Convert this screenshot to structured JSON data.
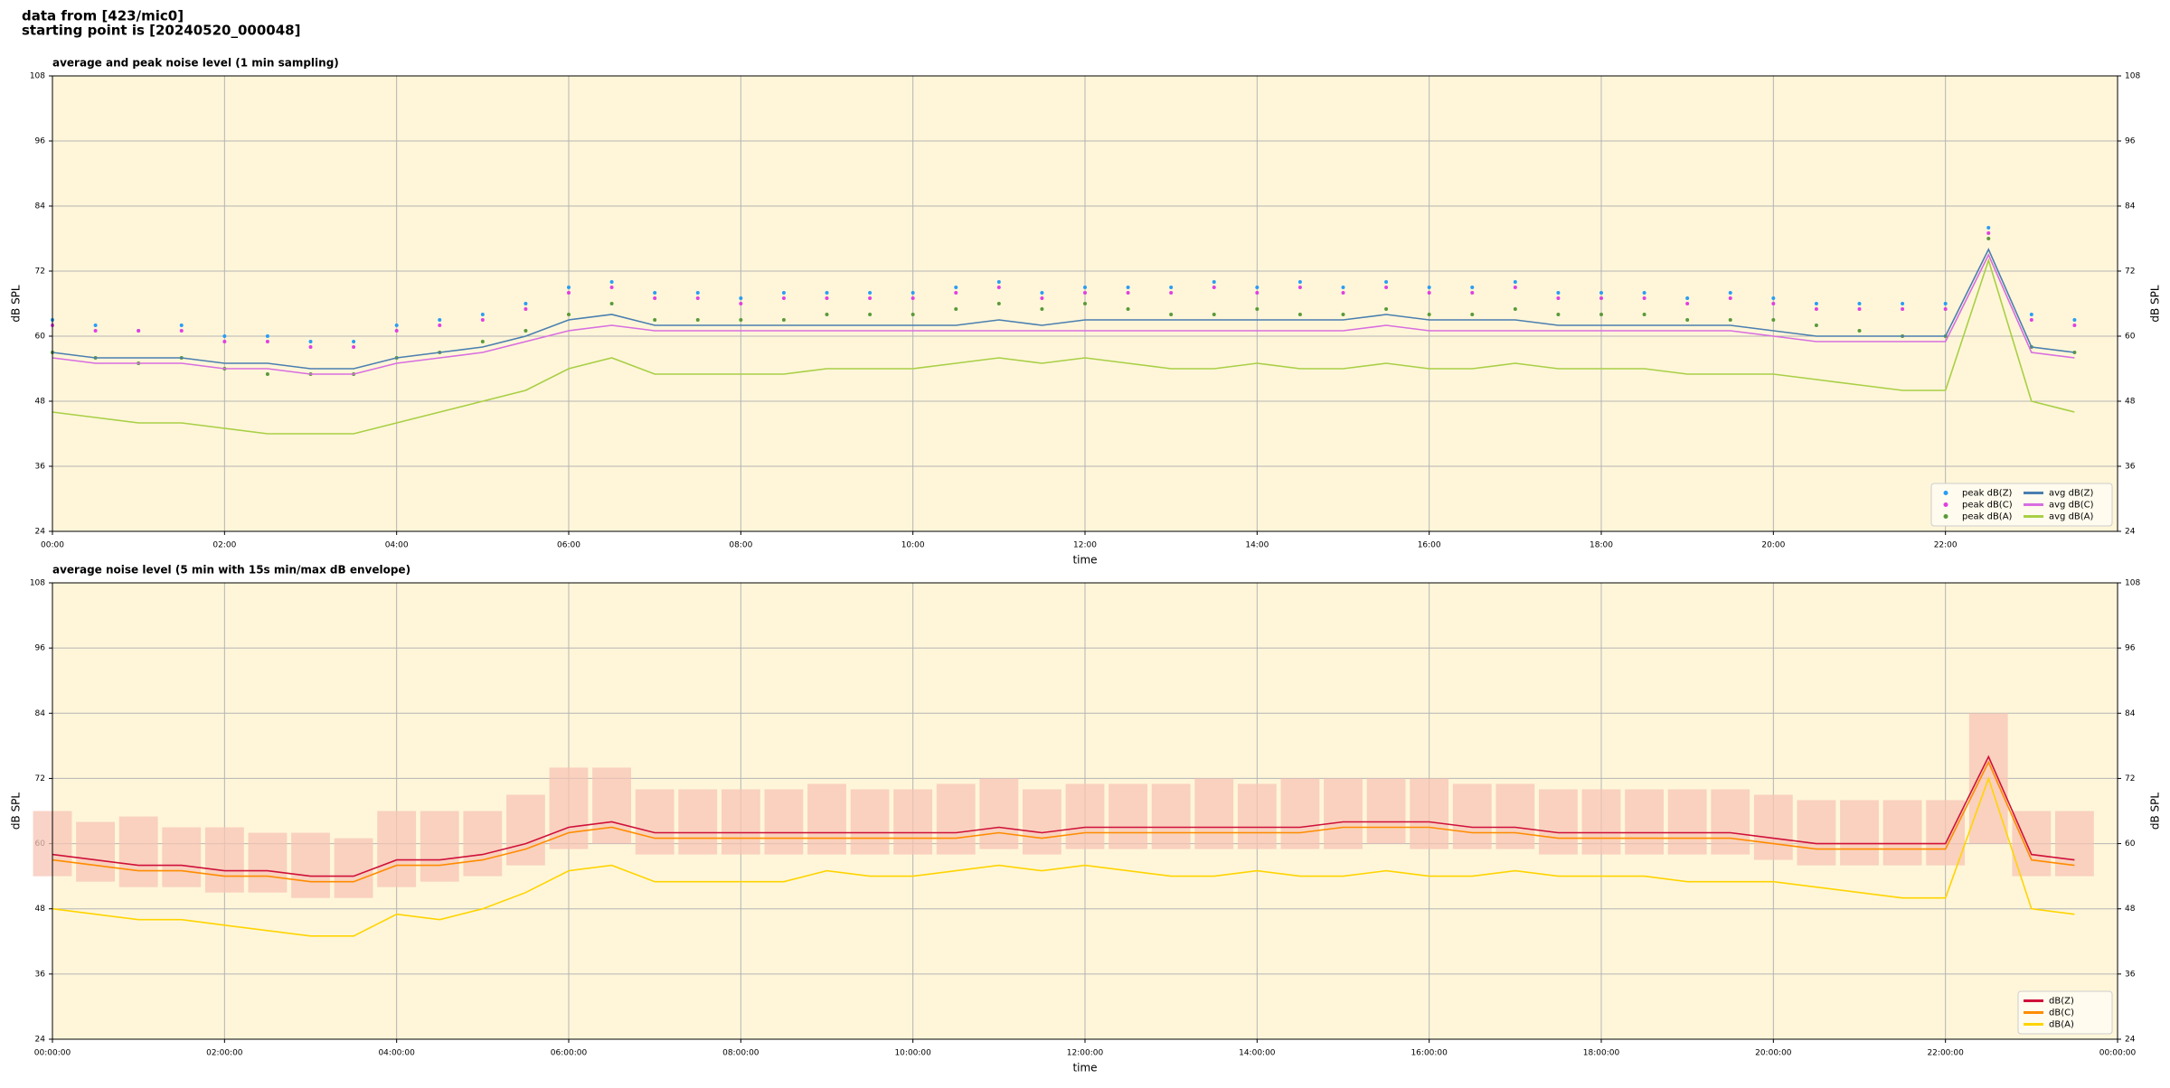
{
  "header": [
    "data from [423/mic0]",
    "starting point is [20240520_000048]"
  ],
  "chart_data": [
    {
      "type": "line",
      "title": "average and peak noise level (1 min sampling)",
      "xlabel": "time",
      "ylabel": "dB SPL",
      "xlim": [
        0,
        24
      ],
      "ylim": [
        24,
        108
      ],
      "yticks": [
        24,
        36,
        48,
        60,
        72,
        84,
        96,
        108
      ],
      "xticks": [
        {
          "value": 0,
          "label": "00:00"
        },
        {
          "value": 2,
          "label": "02:00"
        },
        {
          "value": 4,
          "label": "04:00"
        },
        {
          "value": 6,
          "label": "06:00"
        },
        {
          "value": 8,
          "label": "08:00"
        },
        {
          "value": 10,
          "label": "10:00"
        },
        {
          "value": 12,
          "label": "12:00"
        },
        {
          "value": 14,
          "label": "14:00"
        },
        {
          "value": 16,
          "label": "16:00"
        },
        {
          "value": 18,
          "label": "18:00"
        },
        {
          "value": 20,
          "label": "20:00"
        },
        {
          "value": 22,
          "label": "22:00"
        }
      ],
      "grid": true,
      "legend": "lower right",
      "legend_columns": 2,
      "background": "#fff6d9",
      "x": [
        0,
        0.5,
        1,
        1.5,
        2,
        2.5,
        3,
        3.5,
        4,
        4.5,
        5,
        5.5,
        6,
        6.5,
        7,
        7.5,
        8,
        8.5,
        9,
        9.5,
        10,
        10.5,
        11,
        11.5,
        12,
        12.5,
        13,
        13.5,
        14,
        14.5,
        15,
        15.5,
        16,
        16.5,
        17,
        17.5,
        18,
        18.5,
        19,
        19.5,
        20,
        20.5,
        21,
        21.5,
        22,
        22.5,
        23,
        23.5
      ],
      "series": [
        {
          "name": "peak dB(Z)",
          "mode": "markers",
          "color": "#2a9df4",
          "values": [
            63,
            62,
            61,
            62,
            60,
            60,
            59,
            59,
            62,
            63,
            64,
            66,
            69,
            70,
            68,
            68,
            67,
            68,
            68,
            68,
            68,
            69,
            70,
            68,
            69,
            69,
            69,
            70,
            69,
            70,
            69,
            70,
            69,
            69,
            70,
            68,
            68,
            68,
            67,
            68,
            67,
            66,
            66,
            66,
            66,
            80,
            64,
            63
          ]
        },
        {
          "name": "peak dB(C)",
          "mode": "markers",
          "color": "#e040e0",
          "values": [
            62,
            61,
            61,
            61,
            59,
            59,
            58,
            58,
            61,
            62,
            63,
            65,
            68,
            69,
            67,
            67,
            66,
            67,
            67,
            67,
            67,
            68,
            69,
            67,
            68,
            68,
            68,
            69,
            68,
            69,
            68,
            69,
            68,
            68,
            69,
            67,
            67,
            67,
            66,
            67,
            66,
            65,
            65,
            65,
            65,
            79,
            63,
            62
          ]
        },
        {
          "name": "peak dB(A)",
          "mode": "markers",
          "color": "#5a9a3a",
          "values": [
            57,
            56,
            55,
            56,
            54,
            53,
            53,
            53,
            56,
            57,
            59,
            61,
            64,
            66,
            63,
            63,
            63,
            63,
            64,
            64,
            64,
            65,
            66,
            65,
            66,
            65,
            64,
            64,
            65,
            64,
            64,
            65,
            64,
            64,
            65,
            64,
            64,
            64,
            63,
            63,
            63,
            62,
            61,
            60,
            60,
            78,
            58,
            57
          ]
        },
        {
          "name": "avg dB(Z)",
          "mode": "line",
          "color": "#4a7fb0",
          "values": [
            57,
            56,
            56,
            56,
            55,
            55,
            54,
            54,
            56,
            57,
            58,
            60,
            63,
            64,
            62,
            62,
            62,
            62,
            62,
            62,
            62,
            62,
            63,
            62,
            63,
            63,
            63,
            63,
            63,
            63,
            63,
            64,
            63,
            63,
            63,
            62,
            62,
            62,
            62,
            62,
            61,
            60,
            60,
            60,
            60,
            76,
            58,
            57
          ]
        },
        {
          "name": "avg dB(C)",
          "mode": "line",
          "color": "#d86ee0",
          "values": [
            56,
            55,
            55,
            55,
            54,
            54,
            53,
            53,
            55,
            56,
            57,
            59,
            61,
            62,
            61,
            61,
            61,
            61,
            61,
            61,
            61,
            61,
            61,
            61,
            61,
            61,
            61,
            61,
            61,
            61,
            61,
            62,
            61,
            61,
            61,
            61,
            61,
            61,
            61,
            61,
            60,
            59,
            59,
            59,
            59,
            75,
            57,
            56
          ]
        },
        {
          "name": "avg dB(A)",
          "mode": "line",
          "color": "#a8cf45",
          "values": [
            46,
            45,
            44,
            44,
            43,
            42,
            42,
            42,
            44,
            46,
            48,
            50,
            54,
            56,
            53,
            53,
            53,
            53,
            54,
            54,
            54,
            55,
            56,
            55,
            56,
            55,
            54,
            54,
            55,
            54,
            54,
            55,
            54,
            54,
            55,
            54,
            54,
            54,
            53,
            53,
            53,
            52,
            51,
            50,
            50,
            74,
            48,
            46
          ]
        }
      ]
    },
    {
      "type": "line",
      "title": "average noise level (5 min with 15s min/max dB envelope)",
      "xlabel": "time",
      "ylabel": "dB SPL",
      "xlim": [
        0,
        24
      ],
      "ylim": [
        24,
        108
      ],
      "yticks": [
        24,
        36,
        48,
        60,
        72,
        84,
        96,
        108
      ],
      "xticks": [
        {
          "value": 0,
          "label": "00:00:00"
        },
        {
          "value": 2,
          "label": "02:00:00"
        },
        {
          "value": 4,
          "label": "04:00:00"
        },
        {
          "value": 6,
          "label": "06:00:00"
        },
        {
          "value": 8,
          "label": "08:00:00"
        },
        {
          "value": 10,
          "label": "10:00:00"
        },
        {
          "value": 12,
          "label": "12:00:00"
        },
        {
          "value": 14,
          "label": "14:00:00"
        },
        {
          "value": 16,
          "label": "16:00:00"
        },
        {
          "value": 18,
          "label": "18:00:00"
        },
        {
          "value": 20,
          "label": "20:00:00"
        },
        {
          "value": 22,
          "label": "22:00:00"
        },
        {
          "value": 24,
          "label": "00:00:00"
        }
      ],
      "grid": true,
      "legend": "lower right",
      "legend_columns": 1,
      "background": "#fff6d9",
      "x": [
        0,
        0.5,
        1,
        1.5,
        2,
        2.5,
        3,
        3.5,
        4,
        4.5,
        5,
        5.5,
        6,
        6.5,
        7,
        7.5,
        8,
        8.5,
        9,
        9.5,
        10,
        10.5,
        11,
        11.5,
        12,
        12.5,
        13,
        13.5,
        14,
        14.5,
        15,
        15.5,
        16,
        16.5,
        17,
        17.5,
        18,
        18.5,
        19,
        19.5,
        20,
        20.5,
        21,
        21.5,
        22,
        22.5,
        23,
        23.5
      ],
      "envelope": {
        "color": "#f7c4b4",
        "max": [
          66,
          64,
          65,
          63,
          63,
          62,
          62,
          61,
          66,
          66,
          66,
          69,
          74,
          74,
          70,
          70,
          70,
          70,
          71,
          70,
          70,
          71,
          72,
          70,
          71,
          71,
          71,
          72,
          71,
          72,
          72,
          72,
          72,
          71,
          71,
          70,
          70,
          70,
          70,
          70,
          69,
          68,
          68,
          68,
          68,
          84,
          66,
          66
        ],
        "min": [
          54,
          53,
          52,
          52,
          51,
          51,
          50,
          50,
          52,
          53,
          54,
          56,
          59,
          60,
          58,
          58,
          58,
          58,
          58,
          58,
          58,
          58,
          59,
          58,
          59,
          59,
          59,
          59,
          59,
          59,
          59,
          60,
          59,
          59,
          59,
          58,
          58,
          58,
          58,
          58,
          57,
          56,
          56,
          56,
          56,
          60,
          54,
          54
        ]
      },
      "series": [
        {
          "name": "dB(Z)",
          "mode": "line",
          "color": "#d0103a",
          "values": [
            58,
            57,
            56,
            56,
            55,
            55,
            54,
            54,
            57,
            57,
            58,
            60,
            63,
            64,
            62,
            62,
            62,
            62,
            62,
            62,
            62,
            62,
            63,
            62,
            63,
            63,
            63,
            63,
            63,
            63,
            64,
            64,
            64,
            63,
            63,
            62,
            62,
            62,
            62,
            62,
            61,
            60,
            60,
            60,
            60,
            76,
            58,
            57
          ]
        },
        {
          "name": "dB(C)",
          "mode": "line",
          "color": "#ff8c00",
          "values": [
            57,
            56,
            55,
            55,
            54,
            54,
            53,
            53,
            56,
            56,
            57,
            59,
            62,
            63,
            61,
            61,
            61,
            61,
            61,
            61,
            61,
            61,
            62,
            61,
            62,
            62,
            62,
            62,
            62,
            62,
            63,
            63,
            63,
            62,
            62,
            61,
            61,
            61,
            61,
            61,
            60,
            59,
            59,
            59,
            59,
            75,
            57,
            56
          ]
        },
        {
          "name": "dB(A)",
          "mode": "line",
          "color": "#ffd400",
          "values": [
            48,
            47,
            46,
            46,
            45,
            44,
            43,
            43,
            47,
            46,
            48,
            51,
            55,
            56,
            53,
            53,
            53,
            53,
            55,
            54,
            54,
            55,
            56,
            55,
            56,
            55,
            54,
            54,
            55,
            54,
            54,
            55,
            54,
            54,
            55,
            54,
            54,
            54,
            53,
            53,
            53,
            52,
            51,
            50,
            50,
            72,
            48,
            47
          ]
        }
      ]
    }
  ]
}
